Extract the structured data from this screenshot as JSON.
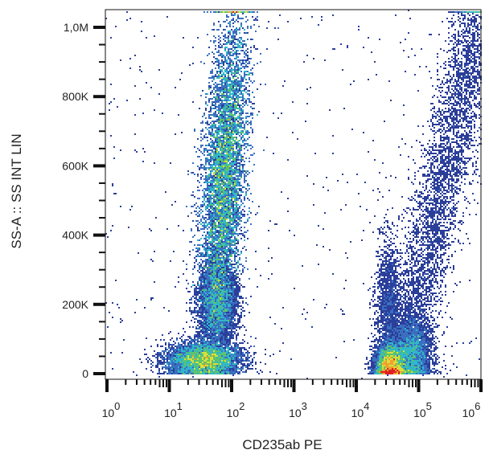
{
  "chart_data": {
    "type": "heatmap",
    "subtype": "flow-cytometry density dot plot",
    "xlabel": "CD235ab PE",
    "ylabel": "SS-A :: SS INT LIN",
    "x_scale": "log",
    "xlim": [
      1,
      1000000
    ],
    "x_ticks": [
      {
        "base": "10",
        "exp": "0"
      },
      {
        "base": "10",
        "exp": "1"
      },
      {
        "base": "10",
        "exp": "2"
      },
      {
        "base": "10",
        "exp": "3"
      },
      {
        "base": "10",
        "exp": "4"
      },
      {
        "base": "10",
        "exp": "5"
      },
      {
        "base": "10",
        "exp": "6"
      }
    ],
    "y_scale": "linear",
    "ylim": [
      -15000,
      1050000
    ],
    "y_ticks": [
      {
        "value": 0,
        "label": "0"
      },
      {
        "value": 200000,
        "label": "200K"
      },
      {
        "value": 400000,
        "label": "400K"
      },
      {
        "value": 600000,
        "label": "600K"
      },
      {
        "value": 800000,
        "label": "800K"
      },
      {
        "value": 1000000,
        "label": "1,0M"
      }
    ],
    "grid": false,
    "colormap": [
      "#2b3e9a",
      "#3a6fc0",
      "#2fb7c9",
      "#5cc46a",
      "#d9e03a",
      "#f0a030",
      "#e02020"
    ],
    "populations": [
      {
        "x_center": 75,
        "x_spread_decades": 0.17,
        "y_center": 560000,
        "y_spread": 230000,
        "weight": 0.45
      },
      {
        "x_center": 60,
        "x_spread_decades": 0.15,
        "y_center": 200000,
        "y_spread": 60000,
        "weight": 0.08
      },
      {
        "x_center": 35,
        "x_spread_decades": 0.3,
        "y_center": 40000,
        "y_spread": 25000,
        "weight": 0.17
      },
      {
        "x_center": 35000,
        "x_spread_decades": 0.12,
        "y_center": 25000,
        "y_spread": 30000,
        "weight": 0.12
      },
      {
        "x_center": 33000,
        "x_spread_decades": 0.1,
        "y_center": 180000,
        "y_spread": 100000,
        "weight": 0.03
      },
      {
        "x_center": 80000,
        "x_spread_decades": 0.15,
        "y_center": 60000,
        "y_spread": 50000,
        "weight": 0.07
      },
      {
        "x_center": 300000,
        "x_spread_decades": 0.3,
        "y_center": 500000,
        "y_spread": 300000,
        "weight": 0.08
      }
    ]
  }
}
